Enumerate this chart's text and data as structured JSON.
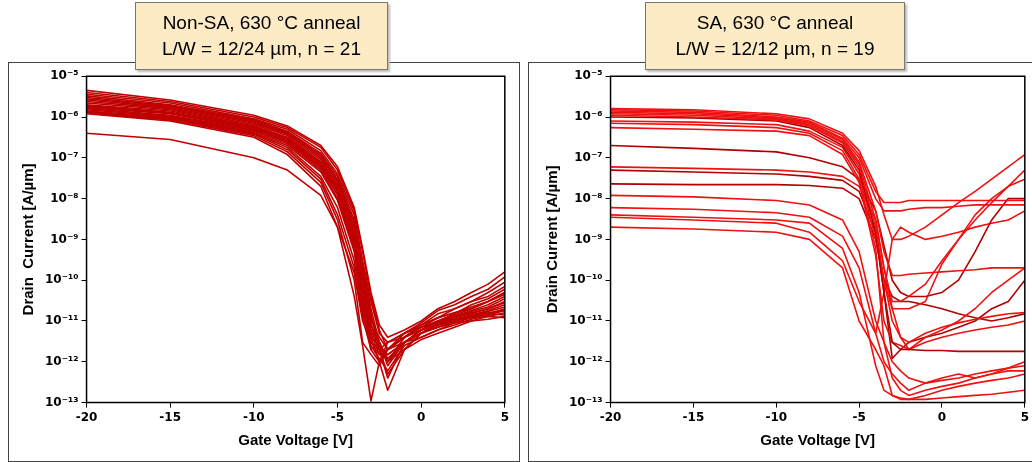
{
  "chart_data": [
    {
      "type": "line",
      "title": "Non-SA, 630 °C anneal",
      "subtitle": "L/W = 12/24 µm, n = 21",
      "xlabel": "Gate Voltage [V]",
      "ylabel": "Drain  Current [A/µm]",
      "log": "y",
      "marker": "none",
      "legend": false,
      "grid": false,
      "x": [
        -20,
        -15,
        -10,
        -8,
        -6,
        -5,
        -4,
        -3.5,
        -3,
        -2.5,
        -2,
        -1,
        0,
        1,
        2,
        3,
        4,
        5
      ],
      "xlim": [
        -20,
        5
      ],
      "xticks": [
        -20,
        -15,
        -10,
        -5,
        0,
        5
      ],
      "ylim": [
        1e-13,
        1e-05
      ],
      "yticks": [
        {
          "value": 1e-13,
          "label": "10⁻¹³"
        },
        {
          "value": 1e-12,
          "label": "10⁻¹²"
        },
        {
          "value": 1e-11,
          "label": "10⁻¹¹"
        },
        {
          "value": 1e-10,
          "label": "10⁻¹⁰"
        },
        {
          "value": 1e-09,
          "label": "10⁻⁹"
        },
        {
          "value": 1e-08,
          "label": "10⁻⁸"
        },
        {
          "value": 1e-07,
          "label": "10⁻⁷"
        },
        {
          "value": 1e-06,
          "label": "10⁻⁶"
        },
        {
          "value": 1e-05,
          "label": "10⁻⁵"
        }
      ],
      "series": [
        {
          "color": "#c00000",
          "values": [
            4.5e-06,
            2.6e-06,
            1.1e-06,
            6e-07,
            2e-07,
            6e-08,
            6e-09,
            6e-10,
            5e-11,
            8e-12,
            4e-12,
            6e-12,
            1e-11,
            2e-11,
            3e-11,
            5e-11,
            8e-11,
            1.6e-10
          ]
        },
        {
          "color": "#c00000",
          "values": [
            4e-06,
            2.4e-06,
            1e-06,
            5.5e-07,
            1.8e-07,
            5e-08,
            5e-09,
            5e-10,
            4e-11,
            6e-12,
            2e-12,
            5e-12,
            9e-12,
            1.8e-11,
            2.5e-11,
            4e-11,
            6e-11,
            1.2e-10
          ]
        },
        {
          "color": "#c00000",
          "values": [
            3.6e-06,
            2.2e-06,
            9e-07,
            5e-07,
            1.5e-07,
            4e-08,
            4e-09,
            3e-10,
            3e-11,
            5e-12,
            3e-12,
            4e-12,
            8e-12,
            1.5e-11,
            2e-11,
            3e-11,
            5e-11,
            9e-11
          ]
        },
        {
          "color": "#c00000",
          "values": [
            3.3e-06,
            2e-06,
            8.5e-07,
            4.5e-07,
            1.3e-07,
            3.5e-08,
            3e-09,
            2.5e-10,
            2e-11,
            3e-12,
            1e-12,
            4e-12,
            7e-12,
            1.2e-11,
            2e-11,
            3e-11,
            4e-11,
            7e-11
          ]
        },
        {
          "color": "#c00000",
          "values": [
            3e-06,
            1.9e-06,
            8e-07,
            4.2e-07,
            1.2e-07,
            3e-08,
            2.5e-09,
            2e-10,
            1.5e-11,
            2e-12,
            1.5e-12,
            3e-12,
            6e-12,
            1e-11,
            1.5e-11,
            2.5e-11,
            3.5e-11,
            6e-11
          ]
        },
        {
          "color": "#c00000",
          "values": [
            2.8e-06,
            1.8e-06,
            7.5e-07,
            4e-07,
            1.1e-07,
            2.8e-08,
            2e-09,
            1.5e-10,
            1.2e-11,
            3e-12,
            8e-13,
            3e-12,
            6e-12,
            1e-11,
            1.4e-11,
            2e-11,
            3e-11,
            5e-11
          ]
        },
        {
          "color": "#c00000",
          "values": [
            2.6e-06,
            1.7e-06,
            7e-07,
            3.8e-07,
            1e-07,
            2.5e-08,
            1.8e-09,
            1.2e-10,
            1e-11,
            4e-12,
            2e-12,
            5e-12,
            8e-12,
            1.2e-11,
            1.6e-11,
            2.2e-11,
            3e-11,
            4.5e-11
          ]
        },
        {
          "color": "#c00000",
          "values": [
            2.4e-06,
            1.6e-06,
            6.5e-07,
            3.5e-07,
            9e-08,
            2.2e-08,
            1.5e-09,
            1e-10,
            8e-12,
            2e-12,
            5e-13,
            2e-12,
            5e-12,
            9e-12,
            1.3e-11,
            1.8e-11,
            2.5e-11,
            4e-11
          ]
        },
        {
          "color": "#c00000",
          "values": [
            2.2e-06,
            1.5e-06,
            6e-07,
            3.2e-07,
            8e-08,
            2e-08,
            1.3e-09,
            9e-11,
            8e-12,
            3e-12,
            1.2e-12,
            3e-12,
            5e-12,
            8e-12,
            1.2e-11,
            1.7e-11,
            2.2e-11,
            3.5e-11
          ]
        },
        {
          "color": "#c00000",
          "values": [
            2e-06,
            1.4e-06,
            5.8e-07,
            3e-07,
            7.5e-08,
            1.8e-08,
            1.2e-09,
            8e-11,
            6e-12,
            2e-12,
            4e-13,
            3e-12,
            6e-12,
            9e-12,
            1.3e-11,
            1.6e-11,
            2e-11,
            3e-11
          ]
        },
        {
          "color": "#c00000",
          "values": [
            1.9e-06,
            1.3e-06,
            5.5e-07,
            2.8e-07,
            7e-08,
            1.6e-08,
            1e-09,
            6e-11,
            5e-12,
            1.5e-12,
            2e-12,
            4e-12,
            7e-12,
            1e-11,
            1.2e-11,
            1.5e-11,
            2e-11,
            2.8e-11
          ]
        },
        {
          "color": "#c00000",
          "values": [
            1.8e-06,
            1.25e-06,
            5.2e-07,
            2.6e-07,
            6.5e-08,
            1.5e-08,
            9e-10,
            5e-11,
            4e-12,
            2.5e-12,
            1e-12,
            3e-12,
            5e-12,
            8e-12,
            1e-11,
            1.4e-11,
            1.8e-11,
            2.5e-11
          ]
        },
        {
          "color": "#c00000",
          "values": [
            1.7e-06,
            1.2e-06,
            5e-07,
            2.5e-07,
            6e-08,
            1.3e-08,
            8e-10,
            4e-11,
            4e-12,
            1e-12,
            2e-13,
            2e-12,
            5e-12,
            7e-12,
            1e-11,
            1.3e-11,
            1.7e-11,
            2.2e-11
          ]
        },
        {
          "color": "#c00000",
          "values": [
            1.6e-06,
            1.1e-06,
            4.8e-07,
            2.4e-07,
            5.5e-08,
            1.2e-08,
            7e-10,
            3e-11,
            3e-12,
            2e-12,
            1.5e-12,
            3e-12,
            4e-12,
            6e-12,
            9e-12,
            1.2e-11,
            1.5e-11,
            2e-11
          ]
        },
        {
          "color": "#c00000",
          "values": [
            1.5e-06,
            1.05e-06,
            4.5e-07,
            2.2e-07,
            5e-08,
            1e-08,
            6e-10,
            2.5e-11,
            2.5e-12,
            1.2e-12,
            6e-13,
            2.5e-12,
            4e-12,
            6e-12,
            8e-12,
            1.1e-11,
            1.4e-11,
            1.8e-11
          ]
        },
        {
          "color": "#c00000",
          "values": [
            1.4e-06,
            1e-06,
            4.2e-07,
            2e-07,
            4.5e-08,
            9e-09,
            5e-10,
            2e-11,
            2e-12,
            3e-12,
            1e-12,
            2e-12,
            3.5e-12,
            5e-12,
            7e-12,
            1e-11,
            1.3e-11,
            1.6e-11
          ]
        },
        {
          "color": "#c00000",
          "values": [
            1.35e-06,
            9.5e-07,
            4e-07,
            1.8e-07,
            3.5e-08,
            6e-09,
            3e-10,
            1.5e-11,
            3e-12,
            1.5e-12,
            2e-12,
            4e-12,
            6e-12,
            8e-12,
            1.1e-11,
            1.4e-11,
            1.6e-11,
            1.8e-11
          ]
        },
        {
          "color": "#c00000",
          "values": [
            1.3e-06,
            9e-07,
            3.8e-07,
            1.6e-07,
            3e-08,
            4e-09,
            2e-10,
            1.2e-11,
            2e-12,
            1e-12,
            3e-12,
            5e-12,
            7e-12,
            9e-12,
            1.1e-11,
            1.3e-11,
            1.5e-11,
            1.4e-11
          ]
        },
        {
          "color": "#c00000",
          "values": [
            1.25e-06,
            8.5e-07,
            3.5e-07,
            1.4e-07,
            2.5e-08,
            3e-09,
            1e-10,
            3e-12,
            1.5e-12,
            8e-13,
            2e-12,
            4e-12,
            6e-12,
            8e-12,
            1e-11,
            1.2e-11,
            1.3e-11,
            1.2e-11
          ]
        },
        {
          "color": "#c00000",
          "values": [
            1.2e-06,
            8e-07,
            3.2e-07,
            1.2e-07,
            2e-08,
            2e-09,
            4e-11,
            2.5e-12,
            1.1e-13,
            1e-12,
            2e-12,
            3e-12,
            5e-12,
            7e-12,
            9e-12,
            1e-11,
            1.1e-11,
            1.3e-11
          ]
        },
        {
          "color": "#c00000",
          "values": [
            4e-07,
            2.8e-07,
            1e-07,
            5e-08,
            1.2e-08,
            2e-09,
            1.5e-10,
            1e-11,
            3e-12,
            2e-12,
            3e-12,
            5e-12,
            8e-12,
            1.2e-11,
            1.6e-11,
            2e-11,
            3e-11,
            5e-11
          ]
        }
      ]
    },
    {
      "type": "line",
      "title": "SA, 630 °C anneal",
      "subtitle": "L/W = 12/12 µm, n = 19",
      "xlabel": "Gate Voltage [V]",
      "ylabel": "Drain Current [A/µm]",
      "log": "y",
      "marker": "none",
      "legend": false,
      "grid": false,
      "x": [
        -20,
        -15,
        -10,
        -8,
        -6,
        -5,
        -4,
        -3.5,
        -3,
        -2.5,
        -2,
        -1,
        0,
        1,
        2,
        3,
        4,
        5
      ],
      "xlim": [
        -20,
        5
      ],
      "xticks": [
        -20,
        -15,
        -10,
        -5,
        0,
        5
      ],
      "ylim": [
        1e-13,
        1e-05
      ],
      "yticks": [
        {
          "value": 1e-13,
          "label": "10⁻¹³"
        },
        {
          "value": 1e-12,
          "label": "10⁻¹²"
        },
        {
          "value": 1e-11,
          "label": "10⁻¹¹"
        },
        {
          "value": 1e-10,
          "label": "10⁻¹⁰"
        },
        {
          "value": 1e-09,
          "label": "10⁻⁹"
        },
        {
          "value": 1e-08,
          "label": "10⁻⁸"
        },
        {
          "value": 1e-07,
          "label": "10⁻⁷"
        },
        {
          "value": 1e-06,
          "label": "10⁻⁶"
        },
        {
          "value": 1e-05,
          "label": "10⁻⁵"
        }
      ],
      "series": [
        {
          "color": "#f01010",
          "values": [
            1.6e-06,
            1.5e-06,
            1.2e-06,
            9e-07,
            4e-07,
            1.5e-07,
            2e-08,
            4e-09,
            1e-09,
            1e-09,
            1.2e-09,
            2e-09,
            4e-09,
            8e-09,
            1.5e-08,
            3e-08,
            6e-08,
            1.2e-07
          ]
        },
        {
          "color": "#f01010",
          "values": [
            1.5e-06,
            1.4e-06,
            1.1e-06,
            8e-07,
            3.5e-07,
            1.2e-07,
            1.5e-08,
            8e-09,
            8e-09,
            8e-09,
            9e-09,
            9e-09,
            9e-09,
            9e-09,
            9e-09,
            9e-09,
            9e-09,
            9e-09
          ]
        },
        {
          "color": "#f01010",
          "values": [
            1.4e-06,
            1.3e-06,
            1e-06,
            7.5e-07,
            3e-07,
            1e-07,
            1e-08,
            5e-09,
            5e-09,
            5e-09,
            5.5e-09,
            6e-09,
            6e-09,
            6.5e-09,
            7e-09,
            7e-09,
            7e-09,
            7e-09
          ]
        },
        {
          "color": "#f01010",
          "values": [
            1.3e-06,
            1.2e-06,
            9.5e-07,
            7e-07,
            2.8e-07,
            8e-08,
            5e-09,
            5e-10,
            1.3e-10,
            1.3e-10,
            1.4e-10,
            1.5e-10,
            1.6e-10,
            1.7e-10,
            1.8e-10,
            2e-10,
            2e-10,
            2e-10
          ]
        },
        {
          "color": "#f01010",
          "values": [
            1.2e-06,
            1.1e-06,
            9e-07,
            6.5e-07,
            2.5e-07,
            7e-08,
            3e-09,
            2e-10,
            3e-11,
            3e-11,
            4e-11,
            8e-11,
            3e-10,
            1e-09,
            3e-09,
            8e-09,
            2e-08,
            5e-08
          ]
        },
        {
          "color": "#f01010",
          "values": [
            1.1e-06,
            1e-06,
            8.5e-07,
            6e-07,
            2.3e-07,
            6e-08,
            2e-09,
            1e-10,
            1e-11,
            4e-12,
            3e-12,
            5e-12,
            7e-12,
            9e-12,
            1.1e-11,
            1.3e-11,
            1.5e-11,
            1.6e-11
          ]
        },
        {
          "color": "#b00000",
          "values": [
            1e-06,
            9.5e-07,
            8e-07,
            5.5e-07,
            2e-07,
            5e-08,
            1.5e-09,
            5e-11,
            3e-12,
            2e-12,
            2e-12,
            1.9e-12,
            1.9e-12,
            1.8e-12,
            1.8e-12,
            1.8e-12,
            1.8e-12,
            1.8e-12
          ]
        },
        {
          "color": "#f01010",
          "values": [
            8e-07,
            7.5e-07,
            6.5e-07,
            4.5e-07,
            1.8e-07,
            4e-08,
            1e-09,
            1e-10,
            2e-11,
            2e-11,
            2e-11,
            3e-11,
            2.5e-10,
            1e-09,
            4e-09,
            1e-08,
            2e-08,
            3e-08
          ]
        },
        {
          "color": "#f01010",
          "values": [
            7e-07,
            6.5e-07,
            5.5e-07,
            4e-07,
            1.5e-07,
            3e-08,
            6e-10,
            3e-12,
            4e-13,
            2e-13,
            1.5e-13,
            2e-13,
            2.5e-13,
            3e-13,
            4e-13,
            5e-13,
            7e-13,
            1e-12
          ]
        },
        {
          "color": "#f01010",
          "values": [
            5.5e-07,
            5e-07,
            4.5e-07,
            3.5e-07,
            1.2e-07,
            2.5e-08,
            4e-10,
            1e-11,
            3e-12,
            2.5e-12,
            2e-12,
            4e-12,
            6e-12,
            1e-11,
            2e-11,
            5e-11,
            1e-10,
            2e-10
          ]
        },
        {
          "color": "#b00000",
          "values": [
            2e-07,
            1.7e-07,
            1.4e-07,
            1e-07,
            6e-08,
            3e-08,
            5e-09,
            7e-10,
            1e-10,
            5e-11,
            4e-11,
            4e-11,
            5e-11,
            1e-10,
            5e-10,
            3e-09,
            1e-08,
            1e-08
          ]
        },
        {
          "color": "#f01010",
          "values": [
            6e-08,
            5.5e-08,
            5e-08,
            4.5e-08,
            3.5e-08,
            2e-08,
            3e-09,
            2e-10,
            2e-11,
            4e-12,
            2e-12,
            3e-12,
            4e-12,
            5e-12,
            6e-12,
            7e-12,
            8e-12,
            1e-11
          ]
        },
        {
          "color": "#b00000",
          "values": [
            5e-08,
            4.5e-08,
            4e-08,
            3.5e-08,
            2.8e-08,
            1.5e-08,
            1.5e-09,
            5e-11,
            1.2e-12,
            2e-12,
            3e-12,
            4e-12,
            5e-12,
            7e-12,
            1e-11,
            2e-11,
            3e-11,
            1e-10
          ]
        },
        {
          "color": "#b00000",
          "values": [
            2.3e-08,
            2.2e-08,
            2.2e-08,
            2.1e-08,
            1.8e-08,
            1e-08,
            1e-09,
            1e-10,
            4e-11,
            3e-11,
            3e-11,
            2.5e-11,
            2e-11,
            1.5e-11,
            1.2e-11,
            1e-11,
            1.2e-11,
            1.5e-11
          ]
        },
        {
          "color": "#f01010",
          "values": [
            1.2e-08,
            1.1e-08,
            9e-09,
            7e-09,
            3e-09,
            5e-10,
            1e-11,
            3e-12,
            1e-12,
            6e-13,
            4e-13,
            3e-13,
            4e-13,
            5e-13,
            4e-13,
            5e-13,
            6e-13,
            6e-13
          ]
        },
        {
          "color": "#f01010",
          "values": [
            6e-09,
            5.5e-09,
            4.5e-09,
            3.5e-09,
            1.2e-09,
            2e-10,
            5e-12,
            1e-12,
            5e-13,
            3e-13,
            2e-13,
            3e-13,
            3.5e-13,
            4e-13,
            5e-13,
            6e-13,
            7e-13,
            8e-13
          ]
        },
        {
          "color": "#f01010",
          "values": [
            4e-09,
            3.5e-09,
            3e-09,
            2.5e-09,
            6e-10,
            5e-11,
            8e-13,
            2e-13,
            1.5e-13,
            1.2e-13,
            1.2e-13,
            1.5e-13,
            2e-13,
            2.5e-13,
            3e-13,
            3.5e-13,
            4e-13,
            5e-13
          ]
        },
        {
          "color": "#f01010",
          "values": [
            3.5e-09,
            3e-09,
            2.5e-09,
            1.5e-09,
            3e-10,
            3e-11,
            5e-12,
            5e-11,
            1e-09,
            2e-09,
            1.5e-09,
            1e-09,
            1.2e-09,
            1.5e-09,
            2e-09,
            2.5e-09,
            3e-09,
            5e-09
          ]
        },
        {
          "color": "#f01010",
          "values": [
            2e-09,
            1.8e-09,
            1.5e-09,
            1e-09,
            2e-10,
            1e-11,
            2e-12,
            8e-13,
            1.5e-13,
            1.3e-13,
            1.2e-13,
            1.2e-13,
            1.3e-13,
            1.4e-13,
            1.5e-13,
            1.6e-13,
            1.8e-13,
            2e-13
          ]
        }
      ]
    }
  ]
}
